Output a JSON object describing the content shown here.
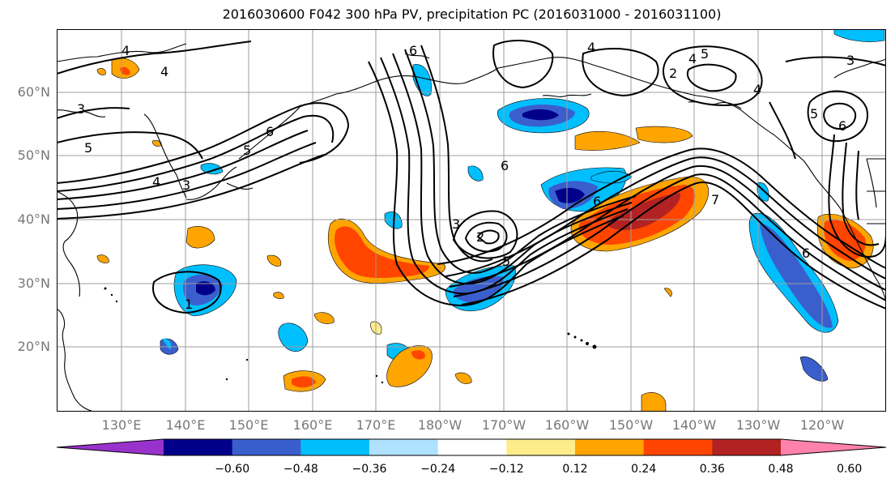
{
  "title": "2016030600 F042 300 hPa PV, precipitation PC (2016031000 - 2016031100)",
  "lat_labels": [
    "60°N",
    "50°N",
    "40°N",
    "30°N",
    "20°N"
  ],
  "lon_labels": [
    "130°E",
    "140°E",
    "150°E",
    "160°E",
    "170°E",
    "180°W",
    "170°W",
    "160°W",
    "150°W",
    "140°W",
    "130°W",
    "120°W"
  ],
  "colorbar": {
    "ticks": [
      "−0.60",
      "−0.48",
      "−0.36",
      "−0.24",
      "−0.12",
      "0.12",
      "0.24",
      "0.36",
      "0.48",
      "0.60"
    ],
    "colors": [
      "#9932cc",
      "#00008b",
      "#3a5fcd",
      "#00bfff",
      "#b0e2ff",
      "#ffffff",
      "#ffec8b",
      "#ffa500",
      "#ff4500",
      "#b22222",
      "#ff82ab"
    ]
  },
  "contour_labels": [
    "4",
    "4",
    "3",
    "5",
    "6",
    "3",
    "4",
    "5",
    "6",
    "6",
    "4",
    "5",
    "4",
    "3",
    "2",
    "4",
    "5",
    "6",
    "3",
    "2",
    "5",
    "6",
    "7",
    "6",
    "1"
  ],
  "colors": {
    "negative_core": "#00008b",
    "negative": "#3a5fcd",
    "negative_light": "#00bfff",
    "positive": "#ffa500",
    "positive_strong": "#ff4500",
    "positive_core": "#b22222",
    "positive_light": "#ffec8b"
  }
}
